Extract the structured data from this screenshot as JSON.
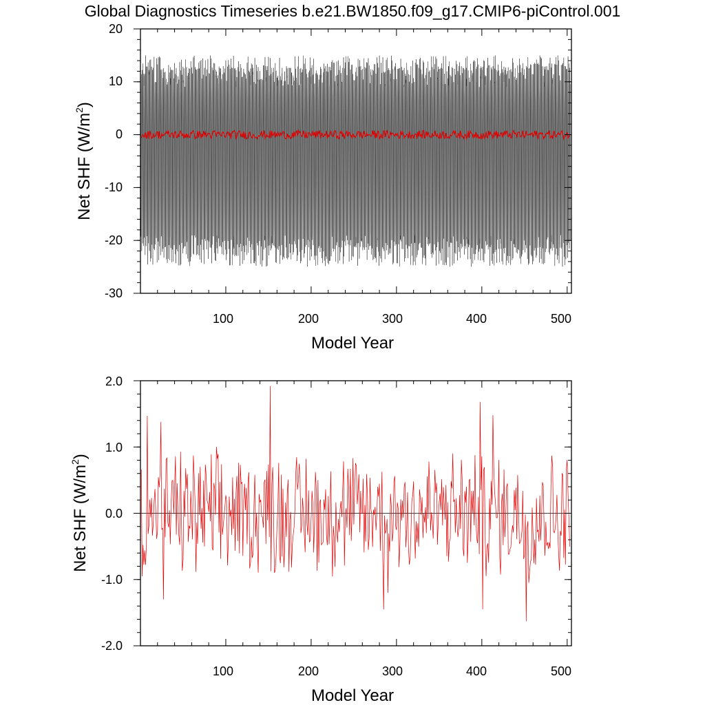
{
  "page": {
    "title": "Global Diagnostics Timeseries b.e21.BW1850.f09_g17.CMIP6-piControl.001"
  },
  "colors": {
    "monthly": "#000000",
    "annual": "#e00000",
    "zero_line": "#000000"
  },
  "chart_data": [
    {
      "type": "line",
      "title": "",
      "xlabel": "Model Year",
      "ylabel_main": "Net SHF (W/m",
      "ylabel_sup": "2",
      "ylabel_end": ")",
      "xlim": [
        0,
        505
      ],
      "ylim": [
        -30,
        20
      ],
      "x_ticks": [
        100,
        200,
        300,
        400,
        500
      ],
      "x_tick_labels": [
        "100",
        "200",
        "300",
        "400",
        "500"
      ],
      "y_ticks": [
        -30,
        -20,
        -10,
        0,
        10,
        20
      ],
      "y_tick_labels": [
        "-30",
        "-20",
        "-10",
        "0",
        "10",
        "20"
      ],
      "grid": false,
      "legend": "none",
      "series": [
        {
          "kind": "monthly",
          "color": "#000000",
          "x_start": 0,
          "x_end": 504,
          "seasonal_peak_typical": 12,
          "seasonal_trough_typical": -22,
          "max_value": 17,
          "min_value": -26.5
        },
        {
          "kind": "annual",
          "color": "#e00000",
          "x_start": 1,
          "x_end": 503
        }
      ]
    },
    {
      "type": "line",
      "title": "",
      "xlabel": "Model Year",
      "ylabel_main": "Net SHF (W/m",
      "ylabel_sup": "2",
      "ylabel_end": ")",
      "xlim": [
        0,
        505
      ],
      "ylim": [
        -2,
        2
      ],
      "x_ticks": [
        100,
        200,
        300,
        400,
        500
      ],
      "x_tick_labels": [
        "100",
        "200",
        "300",
        "400",
        "500"
      ],
      "y_ticks": [
        -2,
        -1,
        0,
        1,
        2
      ],
      "y_tick_labels": [
        "-2.0",
        "-1.0",
        "0.0",
        "1.0",
        "2.0"
      ],
      "grid": false,
      "legend": "none",
      "zero_line": true,
      "series": [
        {
          "kind": "annual",
          "color": "#e00000",
          "x_start": 1,
          "x_end": 503,
          "max_value": 1.92,
          "min_value": -1.63,
          "notable_points": [
            {
              "x": 2,
              "y": -0.95
            },
            {
              "x": 8,
              "y": 1.47
            },
            {
              "x": 24,
              "y": 1.38
            },
            {
              "x": 27,
              "y": -1.3
            },
            {
              "x": 152,
              "y": 1.92
            },
            {
              "x": 285,
              "y": -1.45
            },
            {
              "x": 290,
              "y": -1.2
            },
            {
              "x": 398,
              "y": 1.68
            },
            {
              "x": 401,
              "y": -1.45
            },
            {
              "x": 413,
              "y": 1.48
            },
            {
              "x": 452,
              "y": -1.63
            },
            {
              "x": 455,
              "y": -1.05
            }
          ]
        }
      ]
    }
  ]
}
